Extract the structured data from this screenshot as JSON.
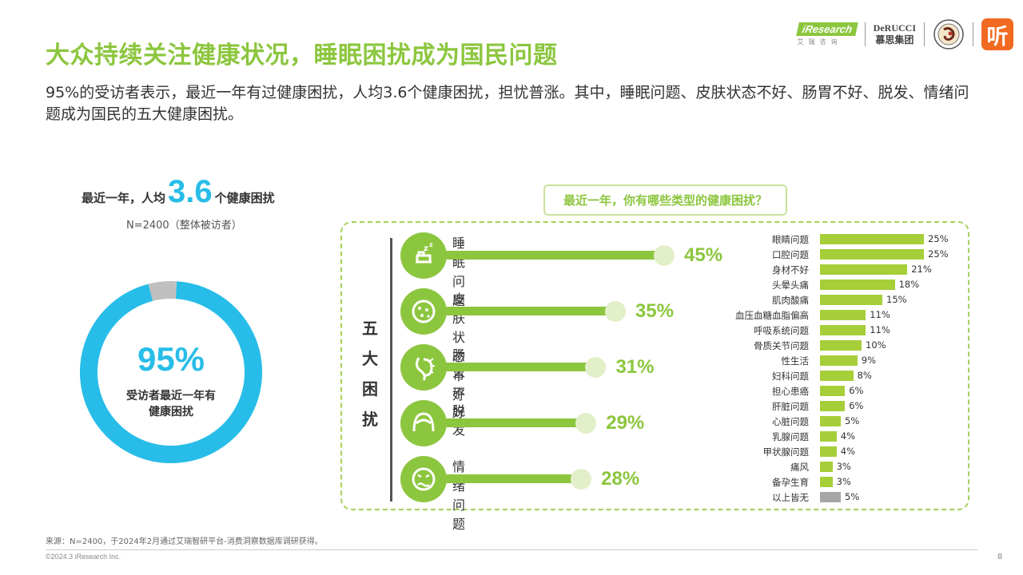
{
  "header": {
    "title": "大众持续关注健康状况，睡眠困扰成为国民问题",
    "subtitle": "95%的受访者表示，最近一年有过健康困扰，人均3.6个健康困扰，担忧普涨。其中，睡眠问题、皮肤状态不好、肠胃不好、脱发、情绪问题成为国民的五大健康困扰。"
  },
  "logos": {
    "iresearch": "iResearch",
    "iresearch_cn": "艾瑞咨询",
    "derucci_en": "DeRUCCI",
    "derucci_cn": "慕思集团",
    "ting": "听"
  },
  "left_panel": {
    "head_prefix": "最近一年，人均",
    "head_number": "3.6",
    "head_suffix": "个健康困扰",
    "sample": "N=2400（整体被访者）",
    "donut_pct": "95%",
    "donut_label": "受访者最近一年有健康困扰",
    "colors": {
      "main": "#27bde8",
      "rest": "#bfbfbf"
    }
  },
  "question": "最近一年，你有哪些类型的健康困扰？",
  "top5_title": "五大困扰",
  "chart_data": [
    {
      "type": "pie",
      "title": "",
      "categories": [
        "受访者最近一年有健康困扰",
        ""
      ],
      "values": [
        95,
        5
      ]
    },
    {
      "type": "bar",
      "orientation": "horizontal",
      "title": "五大困扰",
      "categories": [
        "睡眠问题",
        "皮肤状态不好",
        "肠胃不好",
        "脱发",
        "情绪问题"
      ],
      "values": [
        45,
        35,
        31,
        29,
        28
      ],
      "labels": [
        "45%",
        "35%",
        "31%",
        "29%",
        "28%"
      ],
      "icons": [
        "sleep-icon",
        "skin-icon",
        "stomach-icon",
        "hair-icon",
        "mood-icon"
      ],
      "unit": "%"
    },
    {
      "type": "bar",
      "orientation": "horizontal",
      "title": "",
      "categories": [
        "眼睛问题",
        "口腔问题",
        "身材不好",
        "头晕头痛",
        "肌肉酸痛",
        "血压血糖血脂偏高",
        "呼吸系统问题",
        "骨质关节问题",
        "性生活",
        "妇科问题",
        "担心患癌",
        "肝脏问题",
        "心脏问题",
        "乳腺问题",
        "甲状腺问题",
        "痛风",
        "备孕生育",
        "以上皆无"
      ],
      "values": [
        25,
        25,
        21,
        18,
        15,
        11,
        11,
        10,
        9,
        8,
        6,
        6,
        5,
        4,
        4,
        3,
        3,
        5
      ],
      "labels": [
        "25%",
        "25%",
        "21%",
        "18%",
        "15%",
        "11%",
        "11%",
        "10%",
        "9%",
        "8%",
        "6%",
        "6%",
        "5%",
        "4%",
        "4%",
        "3%",
        "3%",
        "5%"
      ],
      "colors": {
        "main": "#a6ce39",
        "none": "#a6a6a6"
      },
      "unit": "%"
    }
  ],
  "footer": {
    "source": "来源：N=2400，于2024年2月通过艾瑞智研平台-消费洞察数据库调研获得。",
    "copyright": "©2024.3 iResearch Inc.",
    "page": "8"
  }
}
